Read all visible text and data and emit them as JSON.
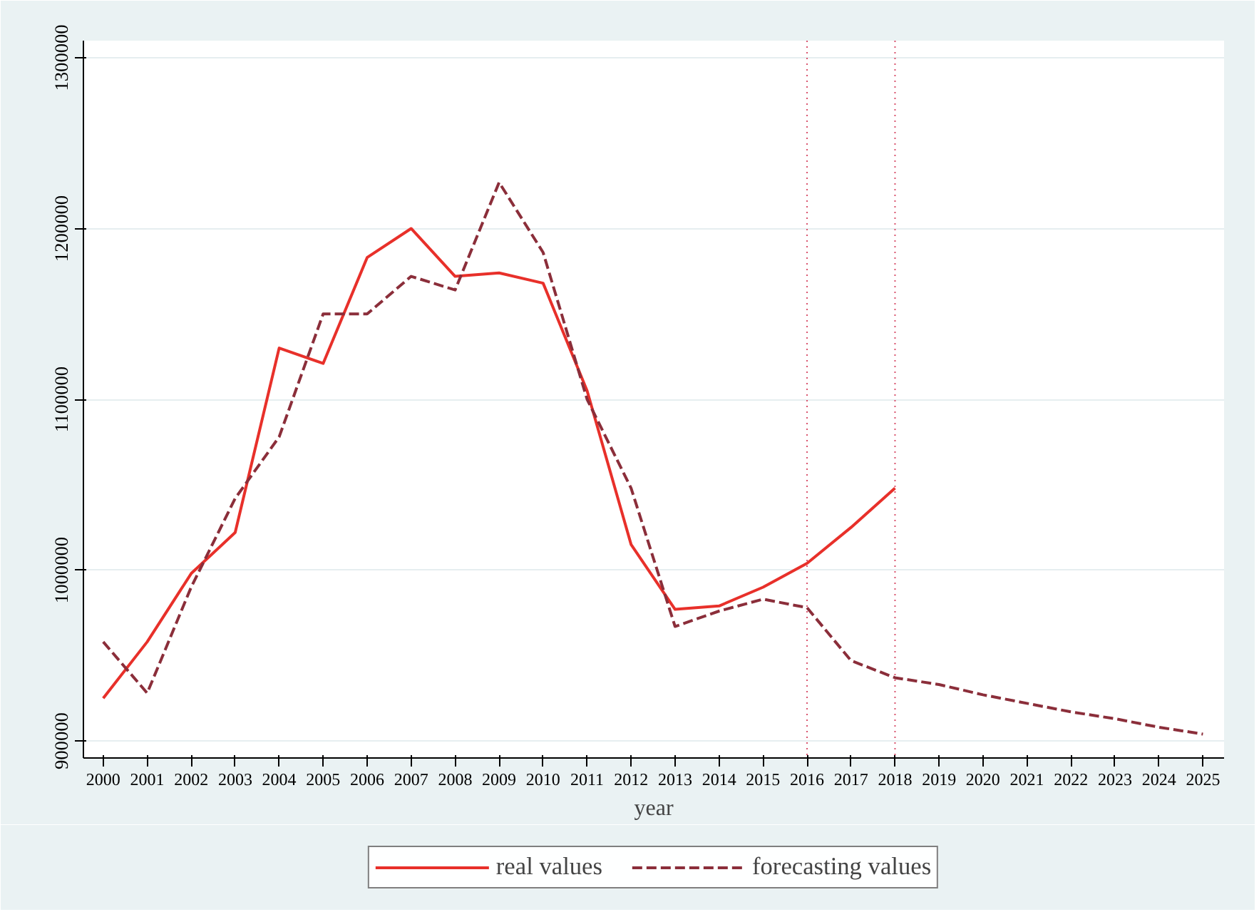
{
  "chart_data": {
    "type": "line",
    "xlabel": "year",
    "x": [
      2000,
      2001,
      2002,
      2003,
      2004,
      2005,
      2006,
      2007,
      2008,
      2009,
      2010,
      2011,
      2012,
      2013,
      2014,
      2015,
      2016,
      2017,
      2018,
      2019,
      2020,
      2021,
      2022,
      2023,
      2024,
      2025
    ],
    "series": [
      {
        "name": "real values",
        "color": "#e8302a",
        "line_style": "solid",
        "values": [
          925000,
          958000,
          998000,
          1022000,
          1130000,
          1121000,
          1183000,
          1200000,
          1172000,
          1174000,
          1168000,
          1105000,
          1015000,
          977000,
          979000,
          990000,
          1004000,
          1025000,
          1048000,
          null,
          null,
          null,
          null,
          null,
          null,
          null
        ]
      },
      {
        "name": "forecasting values",
        "color": "#8b2e3a",
        "line_style": "dashed",
        "values": [
          958000,
          928000,
          990000,
          1042000,
          1078000,
          1150000,
          1150000,
          1172000,
          1164000,
          1227000,
          1186000,
          1100000,
          1048000,
          967000,
          976000,
          983000,
          978000,
          947000,
          937000,
          933000,
          927000,
          922000,
          917000,
          913000,
          908000,
          904000
        ]
      }
    ],
    "xlim": [
      1999.55,
      2025.48
    ],
    "xticks": [
      2000,
      2001,
      2002,
      2003,
      2004,
      2005,
      2006,
      2007,
      2008,
      2009,
      2010,
      2011,
      2012,
      2013,
      2014,
      2015,
      2016,
      2017,
      2018,
      2019,
      2020,
      2021,
      2022,
      2023,
      2024,
      2025
    ],
    "ylim": [
      890000,
      1310000
    ],
    "yticks": [
      900000,
      1000000,
      1100000,
      1200000,
      1300000
    ],
    "ref_lines": [
      {
        "axis": "x",
        "value": 2016,
        "color": "#d9546e",
        "line_style": "dotted"
      },
      {
        "axis": "x",
        "value": 2018,
        "color": "#d9546e",
        "line_style": "dotted"
      }
    ],
    "grid": "y",
    "legend": "bottom"
  }
}
